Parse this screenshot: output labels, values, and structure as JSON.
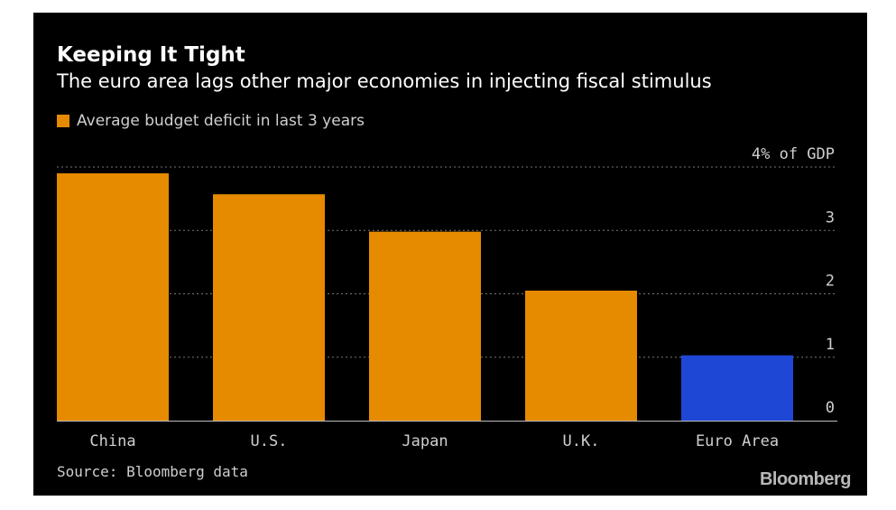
{
  "chart_data": {
    "type": "bar",
    "title": "Keeping It Tight",
    "subtitle": "The euro area lags other major economies in injecting fiscal stimulus",
    "legend": [
      "Average budget deficit in last 3 years"
    ],
    "categories": [
      "China",
      "U.S.",
      "Japan",
      "U.K.",
      "Euro Area"
    ],
    "values": [
      3.9,
      3.57,
      2.98,
      2.05,
      1.03
    ],
    "colors": [
      "#e68a00",
      "#e68a00",
      "#e68a00",
      "#e68a00",
      "#1f47d6"
    ],
    "ylabel": "% of GDP",
    "ylim": [
      0,
      4
    ],
    "yticks": [
      0,
      1,
      2,
      3,
      4
    ],
    "ytick_labels": [
      "0",
      "1",
      "2",
      "3",
      "4% of GDP"
    ],
    "grid": true,
    "legend_position": "top-left"
  },
  "colors": {
    "background": "#000000",
    "bar": "#e68a00",
    "highlight": "#1f47d6",
    "grid": "#777777",
    "text": "#ffffff",
    "muted_text": "#cfcfcf"
  },
  "source": "Source: Bloomberg data",
  "logo": "Bloomberg"
}
